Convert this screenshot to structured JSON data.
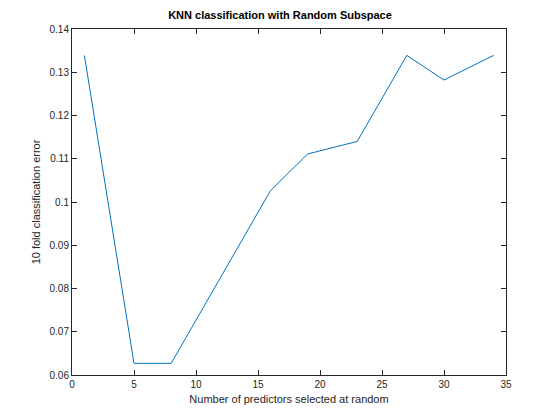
{
  "chart_data": {
    "type": "line",
    "title": "KNN classification with Random Subspace",
    "x_label": "Number of predictors selected at random",
    "y_label": "10 fold classification error",
    "x": [
      1,
      5,
      8,
      16,
      19,
      23,
      27,
      30,
      34
    ],
    "values": [
      0.1339,
      0.0627,
      0.0627,
      0.1026,
      0.1111,
      0.114,
      0.1339,
      0.1282,
      0.1339
    ],
    "color": "#0072bd",
    "xlim": [
      0,
      35
    ],
    "xticks": [
      0,
      5,
      10,
      15,
      20,
      25,
      30,
      35
    ],
    "ylim": [
      0.06,
      0.14
    ],
    "yticks": [
      0.06,
      0.07,
      0.08,
      0.09,
      0.1,
      0.11,
      0.12,
      0.13,
      0.14
    ],
    "grid": false
  }
}
